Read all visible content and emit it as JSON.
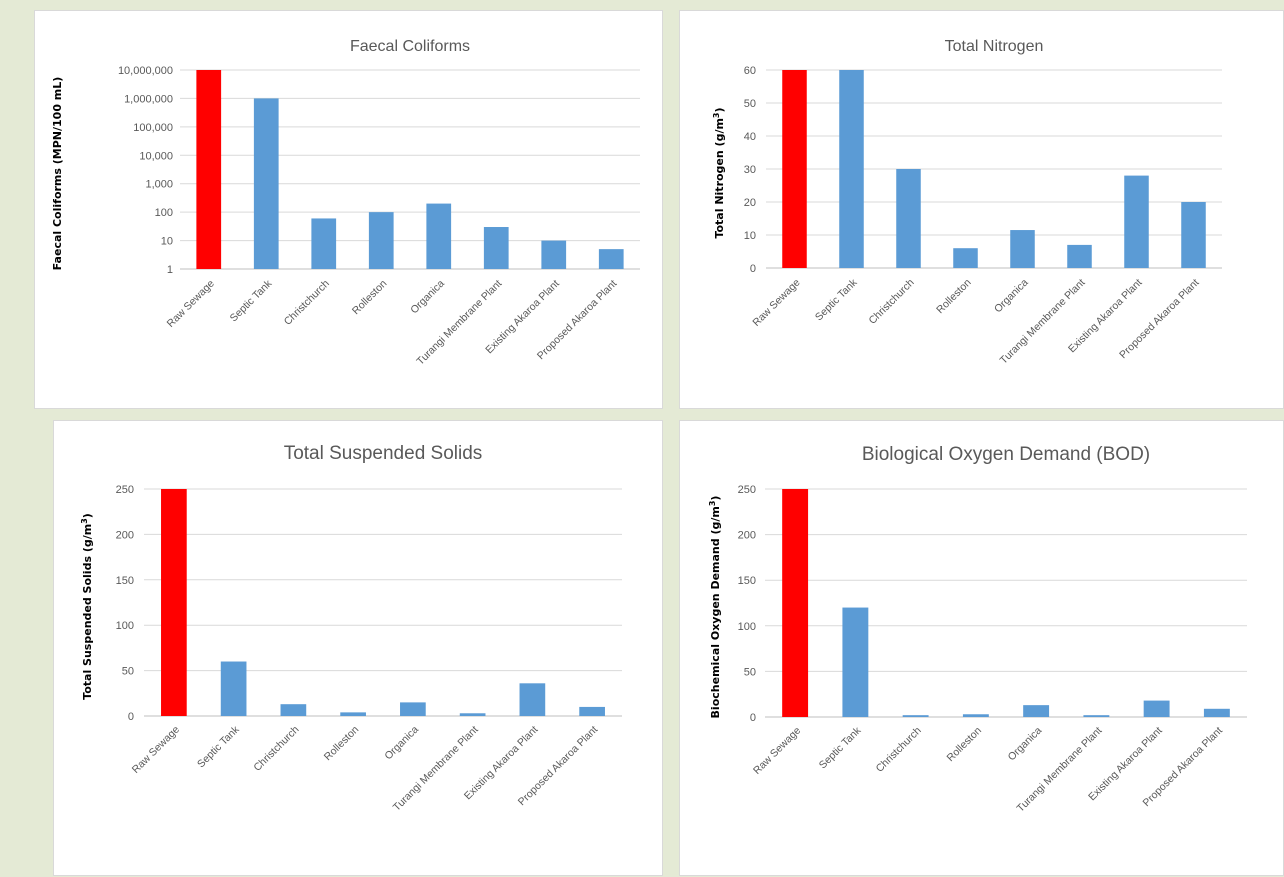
{
  "colors": {
    "highlight": "#ff0000",
    "bar": "#5b9bd5"
  },
  "chart_data": [
    {
      "type": "bar",
      "title": "Faecal Coliforms",
      "ylabel": "Faecal Coliforms (MPN/100 mL)",
      "scale": "log",
      "ylim": [
        1,
        10000000
      ],
      "yticks": [
        1,
        10,
        100,
        1000,
        10000,
        100000,
        1000000,
        10000000
      ],
      "ytick_labels": [
        "1",
        "10",
        "100",
        "1,000",
        "10,000",
        "100,000",
        "1,000,000",
        "10,000,000"
      ],
      "categories": [
        "Raw Sewage",
        "Septic Tank",
        "Christchurch",
        "Rolleston",
        "Organica",
        "Turangi Membrane Plant",
        "Existing Akaroa Plant",
        "Proposed Akaroa Plant"
      ],
      "values": [
        10000000,
        1000000,
        60,
        100,
        200,
        30,
        10,
        5
      ],
      "grid": true
    },
    {
      "type": "bar",
      "title": "Total Nitrogen",
      "ylabel": "Total Nitrogen (g/m³)",
      "scale": "linear",
      "ylim": [
        0,
        60
      ],
      "yticks": [
        0,
        10,
        20,
        30,
        40,
        50,
        60
      ],
      "ytick_labels": [
        "0",
        "10",
        "20",
        "30",
        "40",
        "50",
        "60"
      ],
      "categories": [
        "Raw Sewage",
        "Septic Tank",
        "Christchurch",
        "Rolleston",
        "Organica",
        "Turangi Membrane Plant",
        "Existing Akaroa Plant",
        "Proposed Akaroa Plant"
      ],
      "values": [
        60,
        60,
        30,
        6,
        11.5,
        7,
        28,
        20
      ],
      "grid": true
    },
    {
      "type": "bar",
      "title": "Total Suspended Solids",
      "ylabel": "Total Suspended Solids (g/m³)",
      "scale": "linear",
      "ylim": [
        0,
        250
      ],
      "yticks": [
        0,
        50,
        100,
        150,
        200,
        250
      ],
      "ytick_labels": [
        "0",
        "50",
        "100",
        "150",
        "200",
        "250"
      ],
      "categories": [
        "Raw Sewage",
        "Septic Tank",
        "Christchurch",
        "Rolleston",
        "Organica",
        "Turangi Membrane Plant",
        "Existing Akaroa Plant",
        "Proposed Akaroa Plant"
      ],
      "values": [
        250,
        60,
        13,
        4,
        15,
        3,
        36,
        10
      ],
      "grid": true
    },
    {
      "type": "bar",
      "title": "Biological Oxygen Demand (BOD)",
      "ylabel": "Biochemical Oxygen Demand (g/m³)",
      "scale": "linear",
      "ylim": [
        0,
        250
      ],
      "yticks": [
        0,
        50,
        100,
        150,
        200,
        250
      ],
      "ytick_labels": [
        "0",
        "50",
        "100",
        "150",
        "200",
        "250"
      ],
      "categories": [
        "Raw Sewage",
        "Septic Tank",
        "Christchurch",
        "Rolleston",
        "Organica",
        "Turangi Membrane Plant",
        "Existing Akaroa Plant",
        "Proposed Akaroa Plant"
      ],
      "values": [
        250,
        120,
        2,
        3,
        13,
        2,
        18,
        9
      ],
      "grid": true
    }
  ]
}
